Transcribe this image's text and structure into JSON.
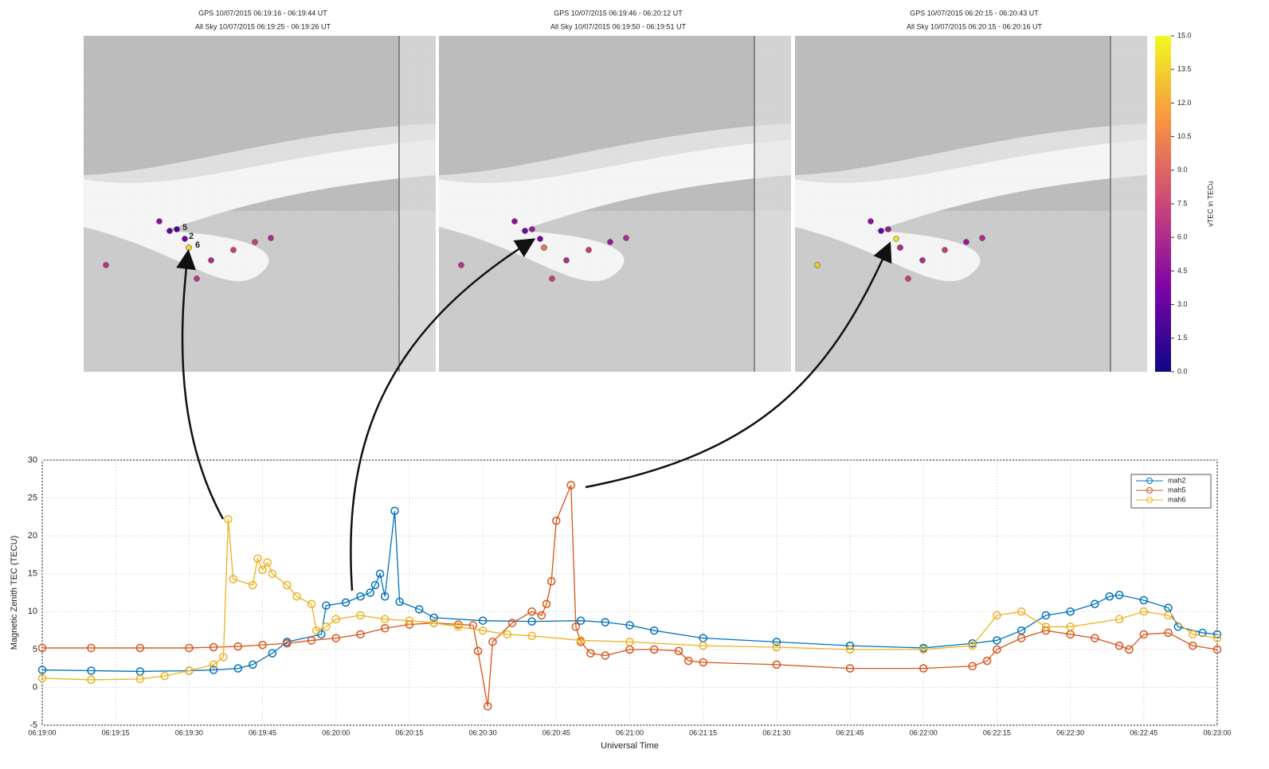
{
  "chart_data": [
    {
      "type": "image-panels",
      "panels": [
        {
          "title": [
            "GPS 10/07/2015 06:19:16 - 06:19:44 UT",
            "All Sky 10/07/2015 06:19:25 - 06:19:26 UT"
          ],
          "dots": [
            4.5,
            3,
            2,
            3.5,
            6,
            14,
            6,
            7,
            7,
            6,
            6.5,
            6.5
          ],
          "dot_labels": [
            "5",
            "2",
            "6"
          ]
        },
        {
          "title": [
            "GPS 10/07/2015 06:19:46 - 06:20:12 UT",
            "All Sky 10/07/2015 06:19:50 - 06:19:51 UT"
          ],
          "dots": [
            4.5,
            3,
            5,
            3.5,
            6,
            10,
            6,
            7,
            5,
            6,
            6.5,
            7
          ]
        },
        {
          "title": [
            "GPS 10/07/2015 06:20:15 - 06:20:43 UT",
            "All Sky 10/07/2015 06:20:15 - 06:20:16 UT"
          ],
          "dots": [
            4.5,
            3,
            5,
            14,
            6,
            6,
            6,
            7,
            5,
            6,
            13,
            7
          ]
        }
      ],
      "colorbar": {
        "label": "vTEC in TECu",
        "lim": [
          0,
          15
        ],
        "ticks": [
          {
            "value": 0,
            "label": "0.0"
          },
          {
            "value": 1.5,
            "label": "1.5"
          },
          {
            "value": 3,
            "label": "3.0"
          },
          {
            "value": 4.5,
            "label": "4.5"
          },
          {
            "value": 6,
            "label": "6.0"
          },
          {
            "value": 7.5,
            "label": "7.5"
          },
          {
            "value": 9,
            "label": "9.0"
          },
          {
            "value": 10.5,
            "label": "10.5"
          },
          {
            "value": 12,
            "label": "12.0"
          },
          {
            "value": 13.5,
            "label": "13.5"
          },
          {
            "value": 15,
            "label": "15.0"
          }
        ]
      }
    },
    {
      "type": "line",
      "x_label": "Universal Time",
      "y_label": "Magnetic Zenith TEC (TECU)",
      "xlim": [
        "06:19:00",
        "06:23:00"
      ],
      "xticks": [
        "06:19:00",
        "06:19:15",
        "06:19:30",
        "06:19:45",
        "06:20:00",
        "06:20:15",
        "06:20:30",
        "06:20:45",
        "06:21:00",
        "06:21:15",
        "06:21:30",
        "06:21:45",
        "06:22:00",
        "06:22:15",
        "06:22:30",
        "06:22:45",
        "06:23:00"
      ],
      "ylim": [
        -5,
        30
      ],
      "yticks": [
        -5,
        0,
        5,
        10,
        15,
        20,
        25,
        30
      ],
      "grid": true,
      "legend": "upper-right",
      "series": [
        {
          "name": "mah2",
          "color": "#0072bd",
          "x": [
            "06:19:00",
            "06:19:10",
            "06:19:20",
            "06:19:30",
            "06:19:35",
            "06:19:40",
            "06:19:43",
            "06:19:47",
            "06:19:50",
            "06:19:57",
            "06:19:58",
            "06:20:02",
            "06:20:05",
            "06:20:07",
            "06:20:08",
            "06:20:09",
            "06:20:10",
            "06:20:12",
            "06:20:13",
            "06:20:17",
            "06:20:20",
            "06:20:30",
            "06:20:40",
            "06:20:50",
            "06:20:55",
            "06:21:00",
            "06:21:05",
            "06:21:15",
            "06:21:30",
            "06:21:45",
            "06:22:00",
            "06:22:10",
            "06:22:15",
            "06:22:20",
            "06:22:25",
            "06:22:30",
            "06:22:35",
            "06:22:38",
            "06:22:40",
            "06:22:45",
            "06:22:50",
            "06:22:52",
            "06:22:57",
            "06:23:00"
          ],
          "values": [
            2.3,
            2.2,
            2.1,
            2.2,
            2.3,
            2.5,
            3,
            4.5,
            6,
            7,
            10.8,
            11.2,
            12,
            12.5,
            13.5,
            15,
            12,
            23.3,
            11.3,
            10.3,
            9.2,
            8.8,
            8.7,
            8.8,
            8.6,
            8.2,
            7.5,
            6.5,
            6,
            5.5,
            5.2,
            5.8,
            6.2,
            7.5,
            9.5,
            10,
            11,
            12,
            12.2,
            11.5,
            10.5,
            8,
            7.2,
            7
          ]
        },
        {
          "name": "mah5",
          "color": "#d95319",
          "x": [
            "06:19:00",
            "06:19:10",
            "06:19:20",
            "06:19:30",
            "06:19:35",
            "06:19:40",
            "06:19:45",
            "06:19:50",
            "06:19:55",
            "06:20:00",
            "06:20:05",
            "06:20:10",
            "06:20:15",
            "06:20:20",
            "06:20:25",
            "06:20:28",
            "06:20:29",
            "06:20:31",
            "06:20:32",
            "06:20:36",
            "06:20:40",
            "06:20:42",
            "06:20:43",
            "06:20:44",
            "06:20:45",
            "06:20:48",
            "06:20:49",
            "06:20:50",
            "06:20:52",
            "06:20:55",
            "06:21:00",
            "06:21:05",
            "06:21:10",
            "06:21:12",
            "06:21:15",
            "06:21:30",
            "06:21:45",
            "06:22:00",
            "06:22:10",
            "06:22:13",
            "06:22:15",
            "06:22:20",
            "06:22:25",
            "06:22:30",
            "06:22:35",
            "06:22:40",
            "06:22:42",
            "06:22:45",
            "06:22:50",
            "06:22:55",
            "06:23:00"
          ],
          "values": [
            5.2,
            5.2,
            5.2,
            5.2,
            5.3,
            5.4,
            5.6,
            5.8,
            6.2,
            6.5,
            7,
            7.8,
            8.3,
            8.5,
            8.3,
            8.2,
            4.8,
            -2.5,
            6,
            8.5,
            10,
            9.5,
            11,
            14,
            22,
            26.7,
            8,
            6,
            4.5,
            4.2,
            5,
            5,
            4.8,
            3.5,
            3.3,
            3,
            2.5,
            2.5,
            2.8,
            3.5,
            5,
            6.5,
            7.5,
            7,
            6.5,
            5.5,
            5,
            7,
            7.2,
            5.5,
            5
          ]
        },
        {
          "name": "mah6",
          "color": "#edb120",
          "x": [
            "06:19:00",
            "06:19:10",
            "06:19:20",
            "06:19:25",
            "06:19:30",
            "06:19:35",
            "06:19:37",
            "06:19:38",
            "06:19:39",
            "06:19:43",
            "06:19:44",
            "06:19:45",
            "06:19:46",
            "06:19:47",
            "06:19:50",
            "06:19:52",
            "06:19:55",
            "06:19:56",
            "06:19:58",
            "06:20:00",
            "06:20:05",
            "06:20:10",
            "06:20:15",
            "06:20:20",
            "06:20:25",
            "06:20:30",
            "06:20:35",
            "06:20:40",
            "06:20:50",
            "06:21:00",
            "06:21:15",
            "06:21:30",
            "06:21:45",
            "06:22:00",
            "06:22:10",
            "06:22:15",
            "06:22:20",
            "06:22:25",
            "06:22:30",
            "06:22:40",
            "06:22:45",
            "06:22:50",
            "06:22:55",
            "06:23:00"
          ],
          "values": [
            1.2,
            1,
            1.1,
            1.5,
            2.2,
            3,
            4,
            22.2,
            14.3,
            13.5,
            17,
            15.5,
            16.5,
            15,
            13.5,
            12,
            11,
            7.5,
            8,
            9,
            9.5,
            9,
            8.8,
            8.5,
            8,
            7.5,
            7,
            6.8,
            6.2,
            6,
            5.5,
            5.3,
            5,
            5,
            5.5,
            9.5,
            10,
            8,
            8,
            9,
            10,
            9.5,
            7,
            6.5
          ]
        }
      ]
    }
  ]
}
